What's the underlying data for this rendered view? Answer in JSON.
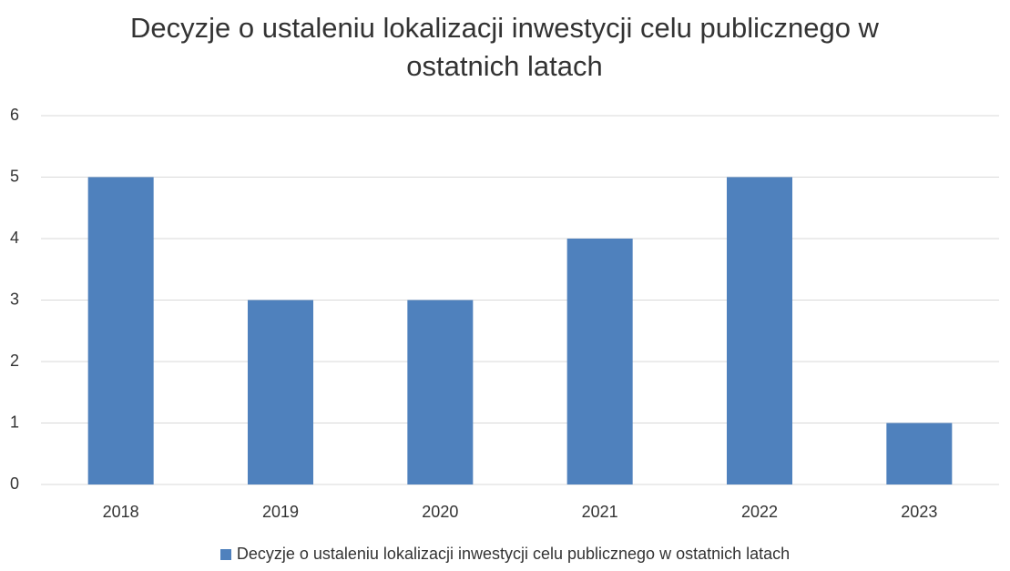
{
  "chart_data": {
    "type": "bar",
    "title": "Decyzje o ustaleniu lokalizacji inwestycji celu publicznego w ostatnich latach",
    "categories": [
      "2018",
      "2019",
      "2020",
      "2021",
      "2022",
      "2023"
    ],
    "series": [
      {
        "name": "Decyzje o ustaleniu lokalizacji inwestycji celu publicznego w ostatnich latach",
        "color": "#4f81bd",
        "values": [
          5,
          3,
          3,
          4,
          5,
          1
        ]
      }
    ],
    "ylim": [
      0,
      6
    ],
    "yticks": [
      0,
      1,
      2,
      3,
      4,
      5,
      6
    ],
    "grid": true,
    "legend": "bottom"
  }
}
